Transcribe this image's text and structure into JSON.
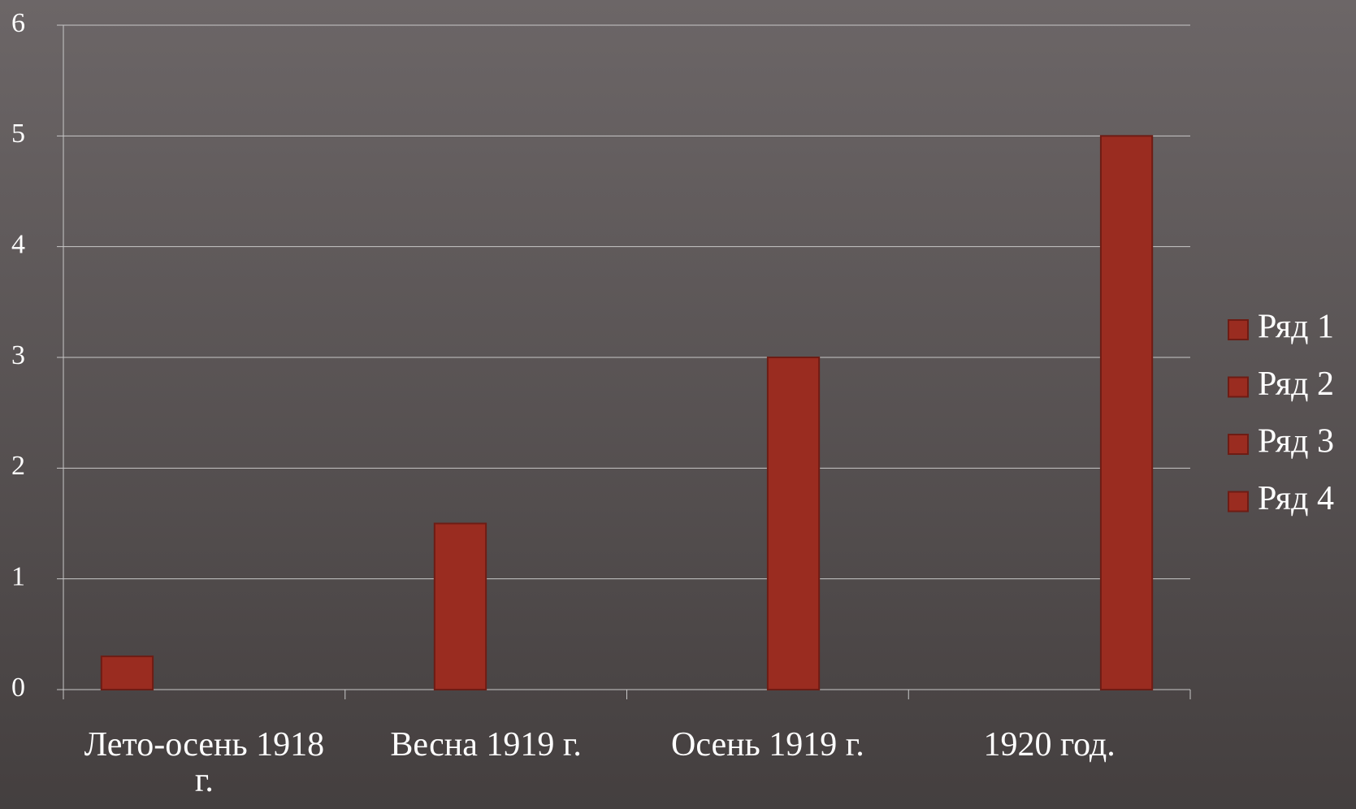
{
  "chart_data": {
    "type": "bar",
    "categories": [
      "Лето-осень 1918 г.",
      "Весна 1919 г.",
      "Осень 1919 г.",
      "1920 год."
    ],
    "series": [
      {
        "name": "Ряд 1",
        "color": "#9a2c20",
        "values": [
          0.3,
          null,
          null,
          null
        ]
      },
      {
        "name": "Ряд 2",
        "color": "#9a2c20",
        "values": [
          null,
          1.5,
          null,
          null
        ]
      },
      {
        "name": "Ряд 3",
        "color": "#9a2c20",
        "values": [
          null,
          null,
          3,
          null
        ]
      },
      {
        "name": "Ряд 4",
        "color": "#9a2c20",
        "values": [
          null,
          null,
          null,
          5
        ]
      }
    ],
    "ylim": [
      0,
      6
    ],
    "yticks": [
      0,
      1,
      2,
      3,
      4,
      5,
      6
    ],
    "grid": true,
    "legend": "right"
  }
}
